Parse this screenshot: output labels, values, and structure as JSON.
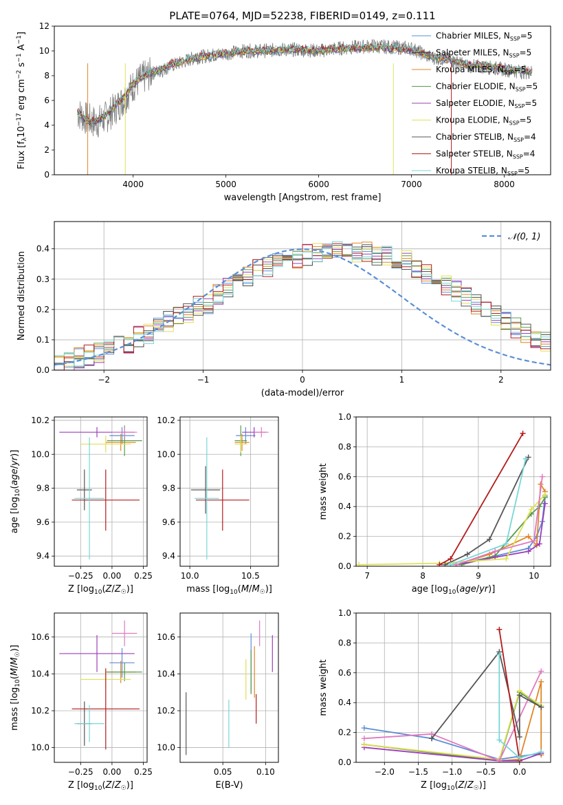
{
  "figure": {
    "title": "PLATE=0764, MJD=52238, FIBERID=0149, z=0.111"
  },
  "chart_data": [
    {
      "id": "spectrum",
      "type": "line",
      "xlabel": "wavelength [Angstrom, rest frame]",
      "ylabel": "Flux [f_λ 10^-17 erg cm^-2 s^-1 A^-1]",
      "xlim": [
        3150,
        8500
      ],
      "ylim": [
        0,
        12
      ],
      "xticks": [
        4000,
        5000,
        6000,
        7000,
        8000
      ],
      "yticks": [
        0,
        2,
        4,
        6,
        8,
        10,
        12
      ],
      "data_x": [
        3400,
        3500,
        3600,
        3700,
        3800,
        3900,
        4000,
        4100,
        4200,
        4300,
        4400,
        4500,
        4600,
        4700,
        4800,
        4900,
        5000,
        5200,
        5400,
        5600,
        5800,
        6000,
        6200,
        6400,
        6600,
        6800,
        7000,
        7200,
        7400,
        7600,
        7800,
        8000,
        8200,
        8300
      ],
      "data_y": [
        5.0,
        4.5,
        4.2,
        4.6,
        5.3,
        6.1,
        7.2,
        7.8,
        8.2,
        8.4,
        8.8,
        9.0,
        9.3,
        9.5,
        9.6,
        9.7,
        9.8,
        10.0,
        10.0,
        10.1,
        10.1,
        10.0,
        10.2,
        10.3,
        10.4,
        10.3,
        10.2,
        9.5,
        9.3,
        8.8,
        8.7,
        8.5,
        8.3,
        8.3
      ],
      "model_y": [
        5.1,
        4.4,
        4.3,
        4.8,
        5.5,
        6.3,
        7.3,
        7.9,
        8.3,
        8.5,
        8.9,
        9.1,
        9.3,
        9.5,
        9.6,
        9.7,
        9.8,
        10.0,
        10.0,
        10.1,
        10.1,
        10.0,
        10.2,
        10.2,
        10.3,
        10.2,
        10.1,
        9.6,
        9.3,
        8.9,
        8.8,
        8.6,
        8.4,
        8.3
      ],
      "legend": [
        {
          "label": "Chabrier MILES, N_SSP=5",
          "color": "#5b8ed6"
        },
        {
          "label": "Salpeter MILES, N_SSP=5",
          "color": "#444444"
        },
        {
          "label": "Kroupa MILES, N_SSP=5",
          "color": "#e08526"
        },
        {
          "label": "Chabrier ELODIE, N_SSP=5",
          "color": "#5a9a4e"
        },
        {
          "label": "Salpeter ELODIE, N_SSP=5",
          "color": "#9b3db8"
        },
        {
          "label": "Kroupa ELODIE, N_SSP=5",
          "color": "#e0e055"
        },
        {
          "label": "Chabrier STELIB, N_SSP=4",
          "color": "#555555"
        },
        {
          "label": "Salpeter STELIB, N_SSP=4",
          "color": "#b31a1a"
        },
        {
          "label": "Kroupa STELIB, N_SSP=5",
          "color": "#77d6d6"
        }
      ]
    },
    {
      "id": "residuals",
      "type": "line",
      "xlabel": "(data-model)/error",
      "ylabel": "Normed distribution",
      "xlim": [
        -2.5,
        2.5
      ],
      "ylim": [
        0,
        0.49
      ],
      "xticks": [
        -2,
        -1,
        0,
        1,
        2
      ],
      "yticks": [
        0.0,
        0.1,
        0.2,
        0.3,
        0.4
      ],
      "legend_label": "N(0,1)",
      "curve": "gaussian mean 0 sigma 1",
      "bin_edges_start": -2.5,
      "bin_width": 0.1,
      "hist": [
        0.03,
        0.03,
        0.04,
        0.05,
        0.06,
        0.07,
        0.08,
        0.09,
        0.11,
        0.12,
        0.14,
        0.16,
        0.18,
        0.19,
        0.21,
        0.22,
        0.25,
        0.27,
        0.29,
        0.31,
        0.33,
        0.34,
        0.36,
        0.37,
        0.37,
        0.38,
        0.39,
        0.4,
        0.4,
        0.4,
        0.39,
        0.39,
        0.38,
        0.38,
        0.37,
        0.36,
        0.34,
        0.32,
        0.3,
        0.28,
        0.26,
        0.24,
        0.22,
        0.2,
        0.18,
        0.16,
        0.14,
        0.12,
        0.1,
        0.09
      ]
    },
    {
      "id": "age_vs_Z",
      "type": "scatter",
      "xlabel": "Z [log10(Z/Z☉)]",
      "ylabel": "age [log10(age/yr)]",
      "xlim": [
        -0.46,
        0.28
      ],
      "ylim": [
        9.34,
        10.22
      ],
      "xticks": [
        -0.25,
        0.0,
        0.25
      ],
      "yticks": [
        9.4,
        9.6,
        9.8,
        10.0,
        10.2
      ],
      "points": [
        {
          "x": 0.08,
          "y": 10.11,
          "xerr": 0.1,
          "yerr": 0.05,
          "color": "#5b8ed6"
        },
        {
          "x": 0.07,
          "y": 10.07,
          "xerr": 0.12,
          "yerr": 0.05,
          "color": "#e08526"
        },
        {
          "x": 0.1,
          "y": 10.08,
          "xerr": 0.14,
          "yerr": 0.09,
          "color": "#5a9a4e"
        },
        {
          "x": -0.12,
          "y": 10.13,
          "xerr": 0.3,
          "yerr": 0.03,
          "color": "#9b3db8"
        },
        {
          "x": -0.05,
          "y": 10.06,
          "xerr": 0.2,
          "yerr": 0.05,
          "color": "#e0e055"
        },
        {
          "x": 0.1,
          "y": 10.13,
          "xerr": 0.1,
          "yerr": 0.03,
          "color": "#e078c0"
        },
        {
          "x": -0.22,
          "y": 9.79,
          "xerr": 0.06,
          "yerr": 0.12,
          "color": "#555555"
        },
        {
          "x": -0.05,
          "y": 9.73,
          "xerr": 0.27,
          "yerr": 0.18,
          "color": "#b31a1a"
        },
        {
          "x": -0.18,
          "y": 9.74,
          "xerr": 0.12,
          "yerr": 0.36,
          "color": "#77d6d6"
        }
      ]
    },
    {
      "id": "age_vs_mass",
      "type": "scatter",
      "xlabel": "mass [log10(M/M☉)]",
      "ylabel": "",
      "xlim": [
        9.92,
        10.73
      ],
      "ylim": [
        9.34,
        10.22
      ],
      "xticks": [
        10.0,
        10.5
      ],
      "yticks": [
        9.4,
        9.6,
        9.8,
        10.0,
        10.2
      ],
      "points": [
        {
          "x": 10.46,
          "y": 10.11,
          "xerr": 0.08,
          "yerr": 0.05,
          "color": "#5b8ed6"
        },
        {
          "x": 10.43,
          "y": 10.07,
          "xerr": 0.06,
          "yerr": 0.05,
          "color": "#e08526"
        },
        {
          "x": 10.42,
          "y": 10.08,
          "xerr": 0.05,
          "yerr": 0.09,
          "color": "#5a9a4e"
        },
        {
          "x": 10.53,
          "y": 10.13,
          "xerr": 0.1,
          "yerr": 0.03,
          "color": "#9b3db8"
        },
        {
          "x": 10.42,
          "y": 10.06,
          "xerr": 0.05,
          "yerr": 0.05,
          "color": "#e0e055"
        },
        {
          "x": 10.59,
          "y": 10.13,
          "xerr": 0.06,
          "yerr": 0.03,
          "color": "#e078c0"
        },
        {
          "x": 10.13,
          "y": 9.79,
          "xerr": 0.12,
          "yerr": 0.14,
          "color": "#555555"
        },
        {
          "x": 10.27,
          "y": 9.73,
          "xerr": 0.22,
          "yerr": 0.18,
          "color": "#b31a1a"
        },
        {
          "x": 10.14,
          "y": 9.74,
          "xerr": 0.1,
          "yerr": 0.36,
          "color": "#77d6d6"
        }
      ]
    },
    {
      "id": "mass_weight_vs_age",
      "type": "line",
      "xlabel": "age [log10(age/yr)]",
      "ylabel": "mass weight",
      "xlim": [
        6.8,
        10.3
      ],
      "ylim": [
        0,
        1.0
      ],
      "xticks": [
        7,
        8,
        9,
        10
      ],
      "yticks": [
        0.0,
        0.2,
        0.4,
        0.6,
        0.8,
        1.0
      ],
      "series": [
        {
          "color": "#5b8ed6",
          "points": [
            [
              8.6,
              0.01
            ],
            [
              9.2,
              0.06
            ],
            [
              9.9,
              0.12
            ],
            [
              10.05,
              0.2
            ],
            [
              10.15,
              0.3
            ],
            [
              10.2,
              0.47
            ]
          ]
        },
        {
          "color": "#e08526",
          "points": [
            [
              8.6,
              0.01
            ],
            [
              9.2,
              0.08
            ],
            [
              9.9,
              0.2
            ],
            [
              10.05,
              0.14
            ],
            [
              10.12,
              0.55
            ],
            [
              10.2,
              0.5
            ]
          ]
        },
        {
          "color": "#5a9a4e",
          "points": [
            [
              8.7,
              0.01
            ],
            [
              9.3,
              0.07
            ],
            [
              9.95,
              0.35
            ],
            [
              10.1,
              0.4
            ],
            [
              10.2,
              0.46
            ]
          ]
        },
        {
          "color": "#9b3db8",
          "points": [
            [
              8.6,
              0.01
            ],
            [
              9.3,
              0.06
            ],
            [
              9.9,
              0.1
            ],
            [
              10.1,
              0.15
            ],
            [
              10.2,
              0.42
            ]
          ]
        },
        {
          "color": "#e0e055",
          "points": [
            [
              6.85,
              0.01
            ],
            [
              8.3,
              0.02
            ],
            [
              9.5,
              0.05
            ],
            [
              9.95,
              0.38
            ],
            [
              10.2,
              0.48
            ]
          ]
        },
        {
          "color": "#e078c0",
          "points": [
            [
              8.6,
              0.01
            ],
            [
              9.3,
              0.1
            ],
            [
              10.0,
              0.17
            ],
            [
              10.15,
              0.6
            ]
          ]
        },
        {
          "color": "#555555",
          "points": [
            [
              8.4,
              0.01
            ],
            [
              8.8,
              0.08
            ],
            [
              9.2,
              0.18
            ],
            [
              9.9,
              0.73
            ]
          ]
        },
        {
          "color": "#b31a1a",
          "points": [
            [
              8.3,
              0.01
            ],
            [
              8.5,
              0.05
            ],
            [
              9.8,
              0.89
            ]
          ]
        },
        {
          "color": "#77d6d6",
          "points": [
            [
              8.5,
              0.01
            ],
            [
              9.5,
              0.15
            ],
            [
              9.85,
              0.72
            ]
          ]
        }
      ]
    },
    {
      "id": "mass_vs_Z",
      "type": "scatter",
      "xlabel": "Z [log10(Z/Z☉)]",
      "ylabel": "mass [log10(M/M☉)]",
      "xlim": [
        -0.46,
        0.28
      ],
      "ylim": [
        9.92,
        10.73
      ],
      "xticks": [
        -0.25,
        0.0,
        0.25
      ],
      "yticks": [
        10.0,
        10.2,
        10.4,
        10.6
      ],
      "points": [
        {
          "x": 0.08,
          "y": 10.46,
          "xerr": 0.1,
          "yerr": 0.08,
          "color": "#5b8ed6"
        },
        {
          "x": 0.07,
          "y": 10.41,
          "xerr": 0.12,
          "yerr": 0.06,
          "color": "#e08526"
        },
        {
          "x": 0.1,
          "y": 10.41,
          "xerr": 0.14,
          "yerr": 0.05,
          "color": "#5a9a4e"
        },
        {
          "x": -0.12,
          "y": 10.51,
          "xerr": 0.3,
          "yerr": 0.1,
          "color": "#9b3db8"
        },
        {
          "x": -0.05,
          "y": 10.37,
          "xerr": 0.2,
          "yerr": 0.05,
          "color": "#e0e055"
        },
        {
          "x": 0.1,
          "y": 10.62,
          "xerr": 0.1,
          "yerr": 0.07,
          "color": "#e078c0"
        },
        {
          "x": -0.22,
          "y": 10.13,
          "xerr": 0.06,
          "yerr": 0.12,
          "color": "#555555"
        },
        {
          "x": -0.05,
          "y": 10.21,
          "xerr": 0.27,
          "yerr": 0.22,
          "color": "#b31a1a"
        },
        {
          "x": -0.18,
          "y": 10.13,
          "xerr": 0.12,
          "yerr": 0.1,
          "color": "#77d6d6"
        }
      ]
    },
    {
      "id": "mass_vs_ebv",
      "type": "scatter",
      "xlabel": "E(B-V)",
      "ylabel": "",
      "xlim": [
        0.0,
        0.115
      ],
      "ylim": [
        9.92,
        10.73
      ],
      "xticks": [
        0.05,
        0.1
      ],
      "yticks": [
        10.0,
        10.2,
        10.4,
        10.6
      ],
      "points": [
        {
          "x": 0.083,
          "y": 10.46,
          "yerr": 0.16,
          "color": "#5b8ed6"
        },
        {
          "x": 0.087,
          "y": 10.41,
          "yerr": 0.14,
          "color": "#e08526"
        },
        {
          "x": 0.083,
          "y": 10.41,
          "yerr": 0.12,
          "color": "#5a9a4e"
        },
        {
          "x": 0.108,
          "y": 10.51,
          "yerr": 0.1,
          "color": "#9b3db8"
        },
        {
          "x": 0.077,
          "y": 10.37,
          "yerr": 0.11,
          "color": "#e0e055"
        },
        {
          "x": 0.093,
          "y": 10.62,
          "yerr": 0.07,
          "color": "#e078c0"
        },
        {
          "x": 0.007,
          "y": 10.13,
          "yerr": 0.17,
          "color": "#555555"
        },
        {
          "x": 0.089,
          "y": 10.21,
          "yerr": 0.08,
          "color": "#b31a1a"
        },
        {
          "x": 0.057,
          "y": 10.13,
          "yerr": 0.13,
          "color": "#77d6d6"
        }
      ]
    },
    {
      "id": "mass_weight_vs_Z",
      "type": "line",
      "xlabel": "Z [log10(Z/Z☉)]",
      "ylabel": "mass weight",
      "xlim": [
        -2.42,
        0.46
      ],
      "ylim": [
        0,
        1.0
      ],
      "xticks": [
        -2.0,
        -1.5,
        -1.0,
        -0.5,
        0.0
      ],
      "yticks": [
        0.0,
        0.2,
        0.4,
        0.6,
        0.8,
        1.0
      ],
      "series": [
        {
          "color": "#5b8ed6",
          "points": [
            [
              -2.3,
              0.23
            ],
            [
              -1.3,
              0.16
            ],
            [
              -0.3,
              0.02
            ],
            [
              0.0,
              0.04
            ],
            [
              0.32,
              0.06
            ]
          ]
        },
        {
          "color": "#e08526",
          "points": [
            [
              -2.3,
              0.12
            ],
            [
              -0.3,
              0.01
            ],
            [
              0.0,
              0.02
            ],
            [
              0.32,
              0.54
            ],
            [
              0.32,
              0.05
            ]
          ]
        },
        {
          "color": "#5a9a4e",
          "points": [
            [
              -2.3,
              0.12
            ],
            [
              -0.3,
              0.01
            ],
            [
              0.0,
              0.47
            ],
            [
              0.32,
              0.37
            ]
          ]
        },
        {
          "color": "#9b3db8",
          "points": [
            [
              -2.3,
              0.1
            ],
            [
              -0.3,
              0.01
            ],
            [
              0.0,
              0.01
            ],
            [
              0.32,
              0.06
            ]
          ]
        },
        {
          "color": "#e0e055",
          "points": [
            [
              -2.3,
              0.12
            ],
            [
              -0.3,
              0.02
            ],
            [
              0.0,
              0.48
            ],
            [
              0.32,
              0.38
            ]
          ]
        },
        {
          "color": "#e078c0",
          "points": [
            [
              -2.3,
              0.16
            ],
            [
              -1.3,
              0.19
            ],
            [
              -0.3,
              0.01
            ],
            [
              0.32,
              0.61
            ]
          ]
        },
        {
          "color": "#555555",
          "points": [
            [
              -1.3,
              0.16
            ],
            [
              -0.3,
              0.74
            ],
            [
              0.0,
              0.17
            ],
            [
              0.0,
              0.45
            ],
            [
              0.32,
              0.37
            ]
          ]
        },
        {
          "color": "#b31a1a",
          "points": [
            [
              -0.3,
              0.89
            ],
            [
              0.0,
              0.01
            ]
          ]
        },
        {
          "color": "#77d6d6",
          "points": [
            [
              -0.3,
              0.72
            ],
            [
              -0.3,
              0.15
            ],
            [
              0.0,
              0.03
            ],
            [
              0.32,
              0.07
            ]
          ]
        }
      ]
    }
  ]
}
